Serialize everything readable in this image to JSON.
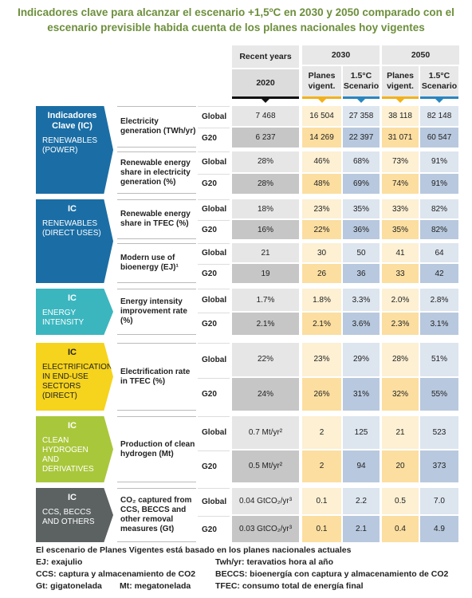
{
  "title": "Indicadores clave para alcanzar el escenario +1,5ºC en 2030 y 2050 comparado con el escenario previsible habida cuenta de los planes nacionales hoy vigentes",
  "header": {
    "recent": {
      "label": "Recent years",
      "year": "2020"
    },
    "periods": [
      {
        "year": "2030",
        "columns": [
          "Planes vigent.",
          "1.5°C Scenario"
        ]
      },
      {
        "year": "2050",
        "columns": [
          "Planes vigent.",
          "1.5°C Scenario"
        ]
      }
    ]
  },
  "groups": [
    {
      "tag": "Indicadores Clave (IC)",
      "name": "RENEWABLES (POWER)",
      "color": "#1b6ea5",
      "text_color": "#ffffff",
      "indicators": [
        {
          "label": "Electricity generation (TWh/yr)",
          "rows": [
            {
              "region": "Global",
              "values": [
                "7 468",
                "16 504",
                "27 358",
                "38 118",
                "82 148"
              ]
            },
            {
              "region": "G20",
              "values": [
                "6 237",
                "14 269",
                "22 397",
                "31 071",
                "60 547"
              ]
            }
          ]
        },
        {
          "label": "Renewable energy share in electricity generation (%)",
          "rows": [
            {
              "region": "Global",
              "values": [
                "28%",
                "46%",
                "68%",
                "73%",
                "91%"
              ]
            },
            {
              "region": "G20",
              "values": [
                "28%",
                "48%",
                "69%",
                "74%",
                "91%"
              ]
            }
          ]
        }
      ]
    },
    {
      "tag": "IC",
      "name": "RENEWABLES (DIRECT USES)",
      "color": "#1b6ea5",
      "text_color": "#ffffff",
      "indicators": [
        {
          "label": "Renewable energy share in TFEC (%)",
          "rows": [
            {
              "region": "Global",
              "values": [
                "18%",
                "23%",
                "35%",
                "33%",
                "82%"
              ]
            },
            {
              "region": "G20",
              "values": [
                "16%",
                "22%",
                "36%",
                "35%",
                "82%"
              ]
            }
          ]
        },
        {
          "label": "Modern use of bioenergy (EJ)¹",
          "rows": [
            {
              "region": "Global",
              "values": [
                "21",
                "30",
                "50",
                "41",
                "64"
              ]
            },
            {
              "region": "G20",
              "values": [
                "19",
                "26",
                "36",
                "33",
                "42"
              ]
            }
          ]
        }
      ]
    },
    {
      "tag": "IC",
      "name": "ENERGY INTENSITY",
      "color": "#3bb6bf",
      "text_color": "#ffffff",
      "indicators": [
        {
          "label": "Energy intensity improvement rate (%)",
          "rows": [
            {
              "region": "Global",
              "values": [
                "1.7%",
                "1.8%",
                "3.3%",
                "2.0%",
                "2.8%"
              ]
            },
            {
              "region": "G20",
              "values": [
                "2.1%",
                "2.1%",
                "3.6%",
                "2.3%",
                "3.1%"
              ]
            }
          ]
        }
      ]
    },
    {
      "tag": "IC",
      "name": "ELECTRIFICATION IN END-USE SECTORS (DIRECT)",
      "color": "#f6d31c",
      "text_color": "#222222",
      "indicators": [
        {
          "label": "Electrification rate in TFEC (%)",
          "rows": [
            {
              "region": "Global",
              "values": [
                "22%",
                "23%",
                "29%",
                "28%",
                "51%"
              ]
            },
            {
              "region": "G20",
              "values": [
                "24%",
                "26%",
                "31%",
                "32%",
                "55%"
              ]
            }
          ]
        }
      ]
    },
    {
      "tag": "IC",
      "name": "CLEAN HYDROGEN AND DERIVATIVES",
      "color": "#a9c73b",
      "text_color": "#ffffff",
      "indicators": [
        {
          "label": "Production of clean hydrogen (Mt)",
          "rows": [
            {
              "region": "Global",
              "values": [
                "0.7 Mt/yr²",
                "2",
                "125",
                "21",
                "523"
              ]
            },
            {
              "region": "G20",
              "values": [
                "0.5 Mt/yr²",
                "2",
                "94",
                "20",
                "373"
              ]
            }
          ]
        }
      ]
    },
    {
      "tag": "IC",
      "name": "CCS, BECCS AND OTHERS",
      "color": "#5c6262",
      "text_color": "#ffffff",
      "indicators": [
        {
          "label": "CO₂ captured from CCS, BECCS and other removal measures (Gt)",
          "rows": [
            {
              "region": "Global",
              "values": [
                "0.04 GtCO₂/yr³",
                "0.1",
                "2.2",
                "0.5",
                "7.0"
              ]
            },
            {
              "region": "G20",
              "values": [
                "0.03 GtCO₂/yr³",
                "0.1",
                "2.1",
                "0.4",
                "4.9"
              ]
            }
          ]
        }
      ]
    }
  ],
  "footer": {
    "note": "El escenario de Planes Vigentes está basado en los planes nacionales actuales",
    "abbreviations": [
      [
        "EJ: exajulio",
        "Twh/yr: teravatios hora al año"
      ],
      [
        "CCS: captura y almacenamiento de CO2",
        "BECCS: bioenergía con captura y almacenamiento de CO2"
      ],
      [
        "Gt: gigatonelada",
        "Mt: megatonelada",
        "TFEC: consumo total de energía final"
      ]
    ]
  }
}
